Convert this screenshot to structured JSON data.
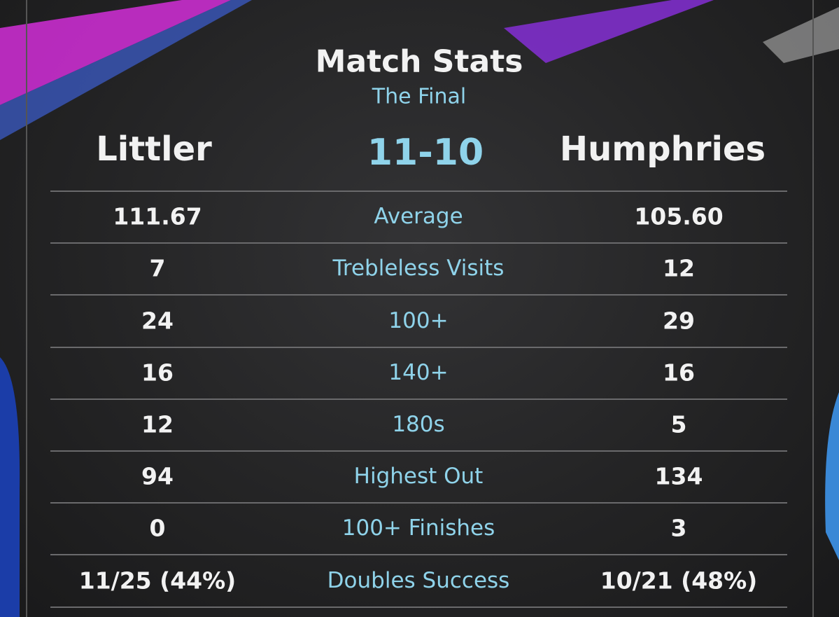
{
  "header": {
    "title": "Match Stats",
    "subtitle": "The Final",
    "player_left": "Littler",
    "score": "11-10",
    "player_right": "Humphries"
  },
  "table": {
    "rows": [
      [
        "111.67",
        "Average",
        "105.60"
      ],
      [
        "7",
        "Trebleless Visits",
        "12"
      ],
      [
        "24",
        "100+",
        "29"
      ],
      [
        "16",
        "140+",
        "16"
      ],
      [
        "12",
        "180s",
        "5"
      ],
      [
        "94",
        "Highest Out",
        "134"
      ],
      [
        "0",
        "100+ Finishes",
        "3"
      ],
      [
        "11/25 (44%)",
        "Doubles Success",
        "10/21 (48%)"
      ]
    ]
  }
}
